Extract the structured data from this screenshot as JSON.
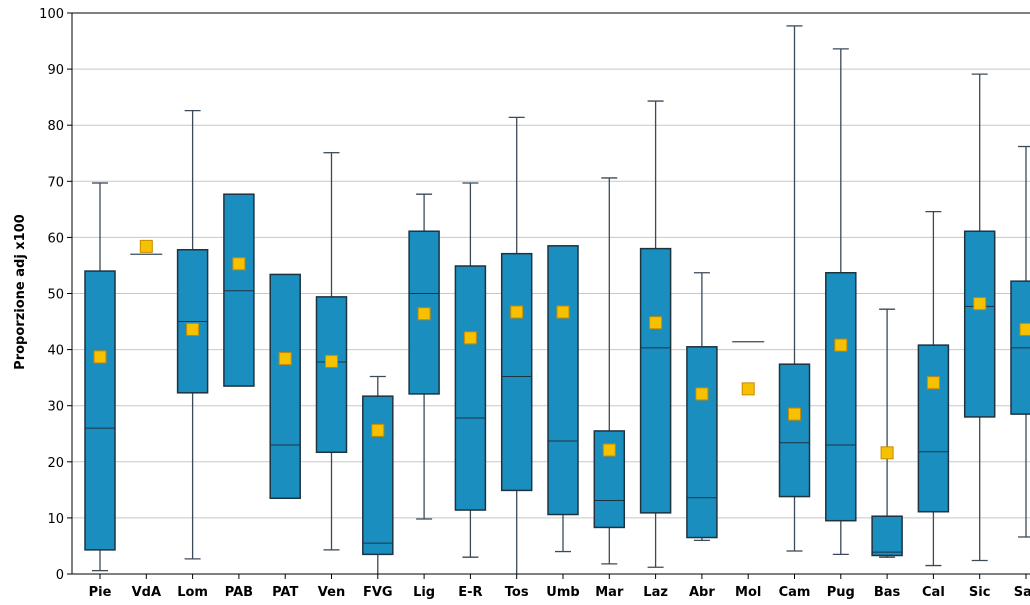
{
  "chart_data": {
    "type": "boxplot",
    "ylabel": "Proporzione adj x100",
    "ylim": [
      0,
      100
    ],
    "yticks": [
      0,
      10,
      20,
      30,
      40,
      50,
      60,
      70,
      80,
      90,
      100
    ],
    "grid": "horizontal",
    "colors": {
      "box": "#1a8fbf",
      "box_stroke": "#1e3340",
      "whisker": "#3a4a58",
      "mean": "#f6c100",
      "mean_stroke": "#c98a00",
      "grid": "#c8c8c8"
    },
    "categories": [
      "Pie",
      "VdA",
      "Lom",
      "PAB",
      "PAT",
      "Ven",
      "FVG",
      "Lig",
      "E-R",
      "Tos",
      "Umb",
      "Mar",
      "Laz",
      "Abr",
      "Mol",
      "Cam",
      "Pug",
      "Bas",
      "Cal",
      "Sic",
      "Sar"
    ],
    "series": [
      {
        "category": "Pie",
        "min": 0.6,
        "q1": 4.3,
        "median": 26,
        "q3": 54,
        "max": 69.7,
        "mean": 38.7
      },
      {
        "category": "VdA",
        "min": 57,
        "q1": 57,
        "median": 57,
        "q3": 57,
        "max": 57,
        "mean": 58.4
      },
      {
        "category": "Lom",
        "min": 2.7,
        "q1": 32.3,
        "median": 45,
        "q3": 57.8,
        "max": 82.6,
        "mean": 43.6
      },
      {
        "category": "PAB",
        "min": 33.5,
        "q1": 33.5,
        "median": 50.5,
        "q3": 67.7,
        "max": 67.7,
        "mean": 55.3
      },
      {
        "category": "PAT",
        "min": 13.5,
        "q1": 13.5,
        "median": 23,
        "q3": 53.4,
        "max": 53.4,
        "mean": 38.4
      },
      {
        "category": "Ven",
        "min": 4.3,
        "q1": 21.7,
        "median": 37.8,
        "q3": 49.4,
        "max": 75.1,
        "mean": 37.9
      },
      {
        "category": "FVG",
        "min": 0,
        "q1": 3.5,
        "median": 5.5,
        "q3": 31.7,
        "max": 35.2,
        "mean": 25.6
      },
      {
        "category": "Lig",
        "min": 9.8,
        "q1": 32.1,
        "median": 50,
        "q3": 61.1,
        "max": 67.7,
        "mean": 46.4
      },
      {
        "category": "E-R",
        "min": 3,
        "q1": 11.4,
        "median": 27.8,
        "q3": 54.9,
        "max": 69.7,
        "mean": 42.1
      },
      {
        "category": "Tos",
        "min": 0,
        "q1": 14.9,
        "median": 35.2,
        "q3": 57.1,
        "max": 81.4,
        "mean": 46.7
      },
      {
        "category": "Umb",
        "min": 4,
        "q1": 10.6,
        "median": 23.7,
        "q3": 58.5,
        "max": 58.5,
        "mean": 46.7
      },
      {
        "category": "Mar",
        "min": 1.8,
        "q1": 8.3,
        "median": 13.1,
        "q3": 25.5,
        "max": 70.6,
        "mean": 22.1
      },
      {
        "category": "Laz",
        "min": 1.2,
        "q1": 10.9,
        "median": 40.3,
        "q3": 58,
        "max": 84.3,
        "mean": 44.8
      },
      {
        "category": "Abr",
        "min": 6,
        "q1": 6.5,
        "median": 13.6,
        "q3": 40.5,
        "max": 53.7,
        "mean": 32.1
      },
      {
        "category": "Mol",
        "min": 41.4,
        "q1": 41.4,
        "median": 41.4,
        "q3": 41.4,
        "max": 41.4,
        "mean": 33
      },
      {
        "category": "Cam",
        "min": 4.1,
        "q1": 13.8,
        "median": 23.4,
        "q3": 37.4,
        "max": 97.7,
        "mean": 28.5
      },
      {
        "category": "Pug",
        "min": 3.5,
        "q1": 9.5,
        "median": 23,
        "q3": 53.7,
        "max": 93.6,
        "mean": 40.8
      },
      {
        "category": "Bas",
        "min": 3,
        "q1": 3.3,
        "median": 3.9,
        "q3": 10.3,
        "max": 47.2,
        "mean": 21.6
      },
      {
        "category": "Cal",
        "min": 1.5,
        "q1": 11.1,
        "median": 21.8,
        "q3": 40.8,
        "max": 64.6,
        "mean": 34.1
      },
      {
        "category": "Sic",
        "min": 2.4,
        "q1": 28,
        "median": 47.7,
        "q3": 61.1,
        "max": 89.1,
        "mean": 48.2
      },
      {
        "category": "Sar",
        "min": 6.6,
        "q1": 28.5,
        "median": 40.3,
        "q3": 52.2,
        "max": 76.2,
        "mean": 43.6
      }
    ]
  }
}
